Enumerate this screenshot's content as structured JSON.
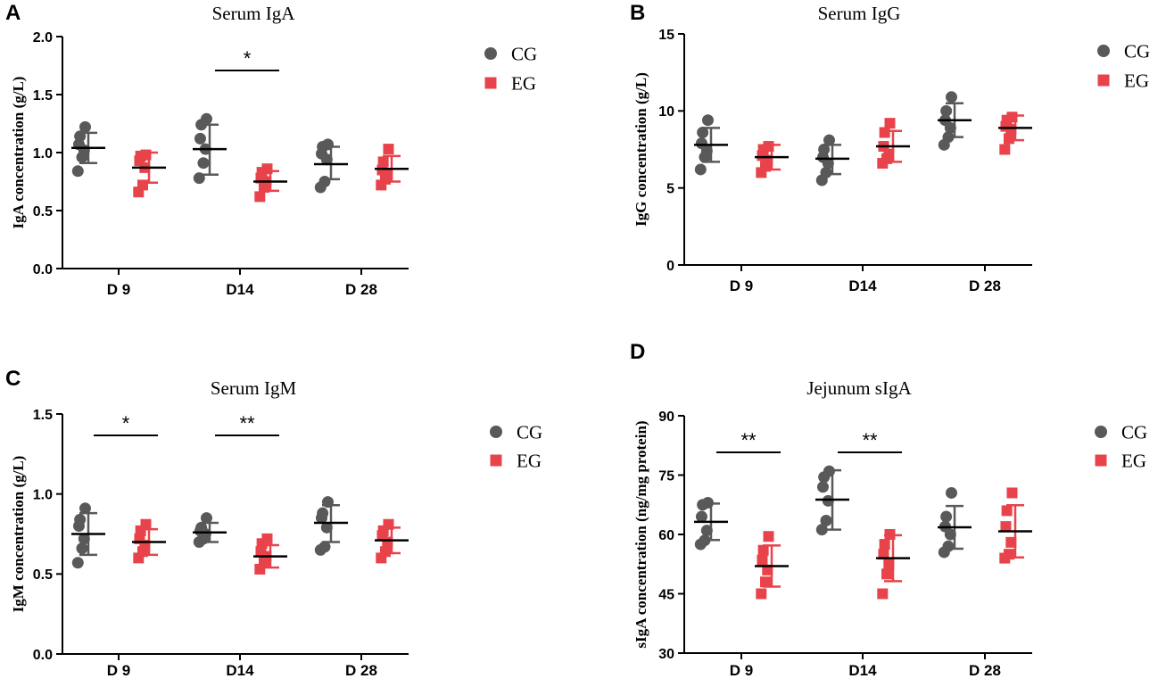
{
  "colors": {
    "CG": "#595959",
    "EG": "#e8434b",
    "mean": "#000000",
    "axis": "#000000"
  },
  "chart_data": [
    {
      "panel": "A",
      "type": "scatter",
      "title": "Serum IgA",
      "ylabel": "IgA concentration  (g/L)",
      "xlabel": "",
      "ylim": [
        0,
        2.0
      ],
      "yticks": [
        0.0,
        0.5,
        1.0,
        1.5,
        2.0
      ],
      "ytick_labels": [
        "0.0",
        "0.5",
        "1.0",
        "1.5",
        "2.0"
      ],
      "categories": [
        "D 9",
        "D14",
        "D 28"
      ],
      "legend": [
        "CG",
        "EG"
      ],
      "series": [
        {
          "name": "CG",
          "mean": [
            1.04,
            1.03,
            0.9
          ],
          "sd_low": [
            0.91,
            0.81,
            0.77
          ],
          "sd_high": [
            1.17,
            1.24,
            1.05
          ],
          "points": [
            [
              0.84,
              0.96,
              1.02,
              1.07,
              1.14,
              1.22
            ],
            [
              0.78,
              0.91,
              1.03,
              1.12,
              1.24,
              1.29
            ],
            [
              0.7,
              0.75,
              0.94,
              0.99,
              1.05,
              1.07
            ]
          ]
        },
        {
          "name": "EG",
          "mean": [
            0.87,
            0.75,
            0.86
          ],
          "sd_low": [
            0.74,
            0.67,
            0.75
          ],
          "sd_high": [
            1.0,
            0.84,
            0.97
          ],
          "points": [
            [
              0.66,
              0.72,
              0.87,
              0.93,
              0.97,
              0.98
            ],
            [
              0.62,
              0.7,
              0.75,
              0.78,
              0.83,
              0.86
            ],
            [
              0.72,
              0.77,
              0.82,
              0.85,
              0.92,
              1.03
            ]
          ]
        }
      ],
      "significance": [
        {
          "category": "D14",
          "label": "*"
        }
      ]
    },
    {
      "panel": "B",
      "type": "scatter",
      "title": "Serum IgG",
      "ylabel": "IgG concentration  (g/L)",
      "xlabel": "",
      "ylim": [
        0,
        15
      ],
      "yticks": [
        0,
        5,
        10,
        15
      ],
      "ytick_labels": [
        "0",
        "5",
        "10",
        "15"
      ],
      "categories": [
        "D 9",
        "D14",
        "D 28"
      ],
      "legend": [
        "CG",
        "EG"
      ],
      "series": [
        {
          "name": "CG",
          "mean": [
            7.8,
            6.9,
            9.4
          ],
          "sd_low": [
            6.7,
            5.9,
            8.3
          ],
          "sd_high": [
            8.9,
            7.8,
            10.5
          ],
          "points": [
            [
              6.2,
              7.0,
              7.4,
              7.9,
              8.6,
              9.4
            ],
            [
              5.5,
              6.0,
              6.6,
              7.0,
              7.5,
              8.1
            ],
            [
              7.8,
              8.3,
              8.9,
              9.4,
              10.0,
              10.9
            ]
          ]
        },
        {
          "name": "EG",
          "mean": [
            7.0,
            7.7,
            8.9
          ],
          "sd_low": [
            6.2,
            6.7,
            8.1
          ],
          "sd_high": [
            7.8,
            8.7,
            9.7
          ],
          "points": [
            [
              6.0,
              6.4,
              6.8,
              7.1,
              7.5,
              7.7
            ],
            [
              6.6,
              6.9,
              7.2,
              7.7,
              8.6,
              9.2
            ],
            [
              7.5,
              8.2,
              8.8,
              9.0,
              9.4,
              9.6
            ]
          ]
        }
      ],
      "significance": []
    },
    {
      "panel": "C",
      "type": "scatter",
      "title": "Serum IgM",
      "ylabel": "IgM concentration  (g/L)",
      "xlabel": "",
      "ylim": [
        0,
        1.5
      ],
      "yticks": [
        0.0,
        0.5,
        1.0,
        1.5
      ],
      "ytick_labels": [
        "0.0",
        "0.5",
        "1.0",
        "1.5"
      ],
      "categories": [
        "D 9",
        "D14",
        "D 28"
      ],
      "legend": [
        "CG",
        "EG"
      ],
      "series": [
        {
          "name": "CG",
          "mean": [
            0.75,
            0.76,
            0.82
          ],
          "sd_low": [
            0.62,
            0.7,
            0.7
          ],
          "sd_high": [
            0.88,
            0.82,
            0.93
          ],
          "points": [
            [
              0.57,
              0.66,
              0.72,
              0.8,
              0.84,
              0.91
            ],
            [
              0.7,
              0.72,
              0.75,
              0.77,
              0.79,
              0.85
            ],
            [
              0.65,
              0.67,
              0.79,
              0.85,
              0.88,
              0.95
            ]
          ]
        },
        {
          "name": "EG",
          "mean": [
            0.7,
            0.61,
            0.71
          ],
          "sd_low": [
            0.62,
            0.54,
            0.63
          ],
          "sd_high": [
            0.78,
            0.68,
            0.79
          ],
          "points": [
            [
              0.6,
              0.64,
              0.68,
              0.72,
              0.77,
              0.81
            ],
            [
              0.53,
              0.57,
              0.61,
              0.64,
              0.69,
              0.72
            ],
            [
              0.6,
              0.64,
              0.7,
              0.74,
              0.77,
              0.81
            ]
          ]
        }
      ],
      "significance": [
        {
          "category": "D 9",
          "label": "*"
        },
        {
          "category": "D14",
          "label": "**"
        }
      ]
    },
    {
      "panel": "D",
      "type": "scatter",
      "title": "Jejunum sIgA",
      "ylabel": "sIgA concentration  (ng/mg protein)",
      "xlabel": "",
      "ylim": [
        30,
        90
      ],
      "yticks": [
        30,
        45,
        60,
        75,
        90
      ],
      "ytick_labels": [
        "30",
        "45",
        "60",
        "75",
        "90"
      ],
      "categories": [
        "D 9",
        "D14",
        "D 28"
      ],
      "legend": [
        "CG",
        "EG"
      ],
      "series": [
        {
          "name": "CG",
          "mean": [
            63.2,
            68.8,
            61.8
          ],
          "sd_low": [
            58.6,
            61.2,
            56.4
          ],
          "sd_high": [
            67.8,
            76.2,
            67.2
          ],
          "points": [
            [
              57.5,
              58.5,
              61.0,
              64.5,
              67.5,
              68.0
            ],
            [
              61.2,
              63.5,
              68.5,
              72.0,
              74.5,
              76.0
            ],
            [
              55.5,
              57.0,
              60.0,
              62.0,
              64.5,
              70.5
            ]
          ]
        },
        {
          "name": "EG",
          "mean": [
            52.0,
            54.0,
            60.8
          ],
          "sd_low": [
            46.8,
            48.2,
            54.2
          ],
          "sd_high": [
            57.2,
            59.8,
            67.4
          ],
          "points": [
            [
              45.0,
              48.0,
              51.0,
              53.5,
              56.0,
              59.5
            ],
            [
              45.0,
              50.0,
              52.5,
              55.0,
              57.5,
              60.0
            ],
            [
              54.0,
              55.0,
              58.0,
              62.0,
              66.0,
              70.5
            ]
          ]
        }
      ],
      "significance": [
        {
          "category": "D 9",
          "label": "**"
        },
        {
          "category": "D14",
          "label": "**"
        }
      ]
    }
  ]
}
